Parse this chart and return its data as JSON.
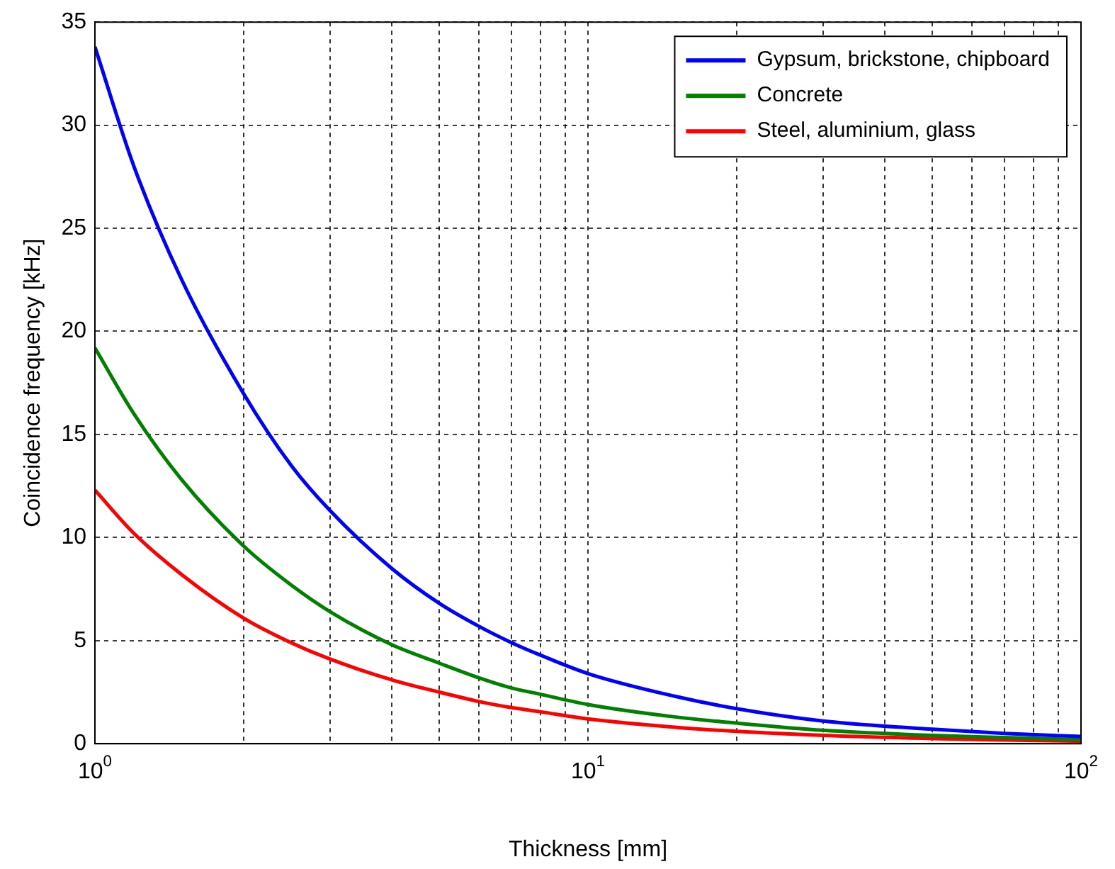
{
  "chart_data": {
    "type": "line",
    "xlabel": "Thickness [mm]",
    "ylabel": "Coincidence frequency [kHz]",
    "log": "x",
    "grid": true,
    "legend": "top right",
    "marker": "none",
    "line_style": "solid",
    "xlim": [
      1,
      100
    ],
    "ylim": [
      0,
      35
    ],
    "xticks": [
      {
        "value": 1,
        "label": "10$^{0}$"
      },
      {
        "value": 2,
        "label": null
      },
      {
        "value": 3,
        "label": null
      },
      {
        "value": 4,
        "label": null
      },
      {
        "value": 5,
        "label": null
      },
      {
        "value": 6,
        "label": null
      },
      {
        "value": 7,
        "label": null
      },
      {
        "value": 8,
        "label": null
      },
      {
        "value": 9,
        "label": null
      },
      {
        "value": 10,
        "label": "10$^{1}$"
      },
      {
        "value": 20,
        "label": null
      },
      {
        "value": 30,
        "label": null
      },
      {
        "value": 40,
        "label": null
      },
      {
        "value": 50,
        "label": null
      },
      {
        "value": 60,
        "label": null
      },
      {
        "value": 70,
        "label": null
      },
      {
        "value": 80,
        "label": null
      },
      {
        "value": 90,
        "label": null
      },
      {
        "value": 100,
        "label": "10$^{2}$"
      }
    ],
    "yticks": [
      0,
      5,
      10,
      15,
      20,
      25,
      30,
      35
    ],
    "x": [
      1,
      1.2,
      1.5,
      2,
      2.5,
      3,
      4,
      5,
      6,
      7,
      8,
      10,
      15,
      20,
      30,
      50,
      70,
      100
    ],
    "series": [
      {
        "name": "Gypsum, brickstone, chipboard",
        "color": "#0000ff",
        "values": [
          33.8,
          28,
          22.5,
          17,
          13.5,
          11.3,
          8.5,
          6.8,
          5.7,
          4.9,
          4.3,
          3.4,
          2.3,
          1.7,
          1.1,
          0.7,
          0.5,
          0.35
        ]
      },
      {
        "name": "Concrete",
        "color": "#008000",
        "values": [
          19.2,
          16,
          12.8,
          9.6,
          7.7,
          6.4,
          4.8,
          3.9,
          3.2,
          2.7,
          2.4,
          1.9,
          1.3,
          1.0,
          0.65,
          0.4,
          0.3,
          0.2
        ]
      },
      {
        "name": "Steel, aluminium, glass",
        "color": "#ff0000",
        "values": [
          12.3,
          10.2,
          8.2,
          6.1,
          4.9,
          4.1,
          3.1,
          2.5,
          2.05,
          1.75,
          1.55,
          1.2,
          0.8,
          0.6,
          0.4,
          0.25,
          0.18,
          0.12
        ]
      }
    ]
  }
}
